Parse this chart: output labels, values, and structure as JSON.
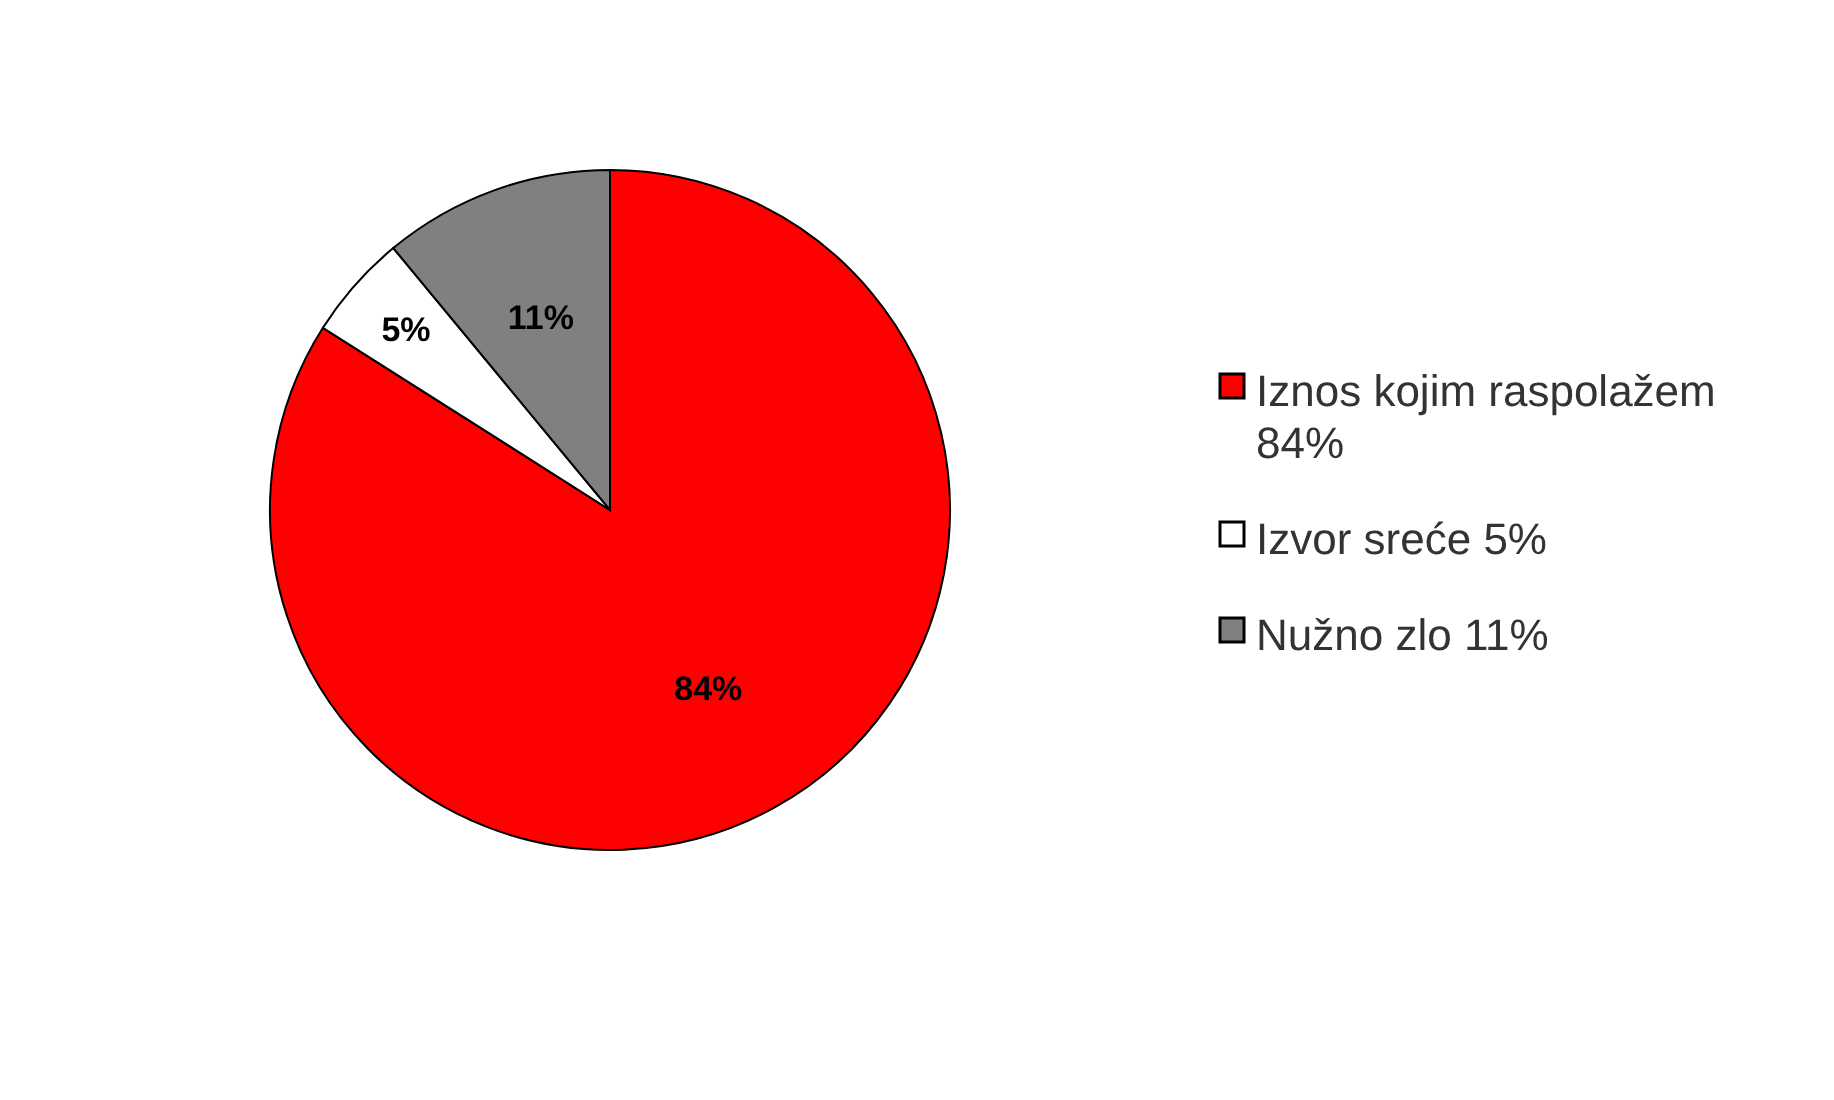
{
  "chart_data": {
    "type": "pie",
    "categories": [
      "Iznos kojim raspolažem",
      "Izvor sreće",
      "Nužno zlo"
    ],
    "values": [
      84,
      5,
      11
    ],
    "colors": [
      "#ff0000",
      "#ffffff",
      "#808080"
    ],
    "value_labels": [
      "84%",
      "5%",
      "11%"
    ],
    "legend": "right"
  }
}
